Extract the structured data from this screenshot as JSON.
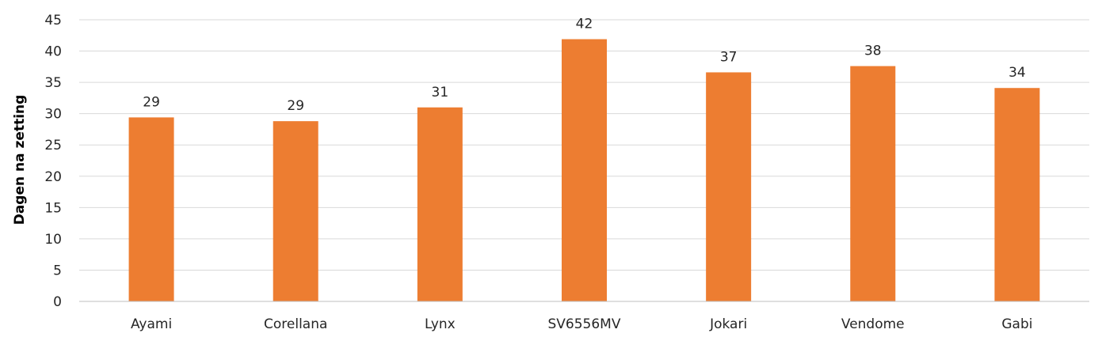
{
  "chart_data": {
    "type": "bar",
    "title": "",
    "xlabel": "",
    "ylabel": "Dagen na zetting",
    "categories": [
      "Ayami",
      "Corellana",
      "Lynx",
      "SV6556MV",
      "Jokari",
      "Vendome",
      "Gabi"
    ],
    "values": [
      29.4,
      28.8,
      31.0,
      41.9,
      36.6,
      37.6,
      34.1
    ],
    "data_labels": [
      "29",
      "29",
      "31",
      "42",
      "37",
      "38",
      "34"
    ],
    "ylim": [
      0,
      45
    ],
    "yticks": [
      0,
      5,
      10,
      15,
      20,
      25,
      30,
      35,
      40,
      45
    ],
    "grid": true,
    "legend": "none",
    "colors": {
      "bar": "#ED7D31",
      "grid": "#D9D9D9",
      "axis": "#BFBFBF"
    }
  }
}
